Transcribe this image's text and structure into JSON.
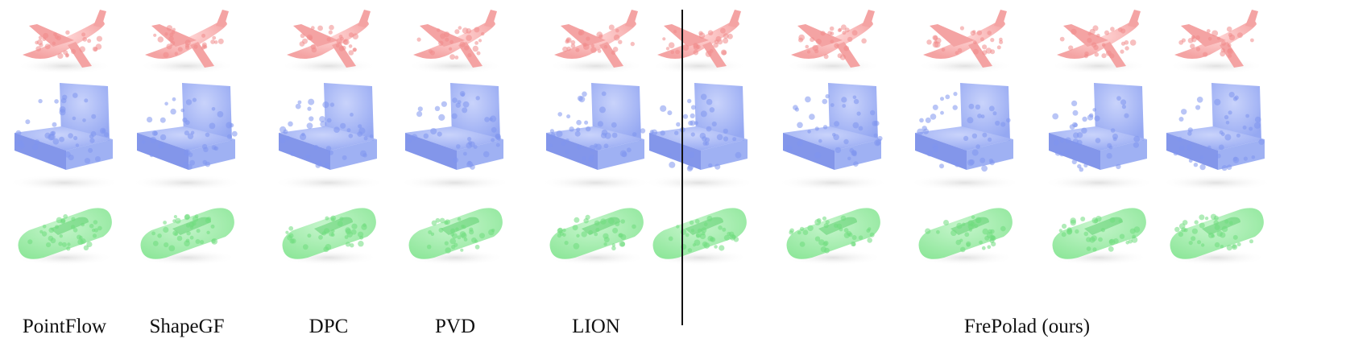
{
  "methods": [
    "PointFlow",
    "ShapeGF",
    "DPC",
    "PVD",
    "LION",
    "FrePolad (ours)"
  ],
  "rows": [
    "airplane",
    "chair",
    "car"
  ],
  "colors": {
    "airplane": "#f4a3a3",
    "airplane_shadow": "#e6b9b9",
    "chair": "#95a8f2",
    "chair_shade": "#6d84e6",
    "car": "#8fe79b",
    "car_shade": "#5fcf6f",
    "divider": "#111111",
    "text": "#111111"
  }
}
